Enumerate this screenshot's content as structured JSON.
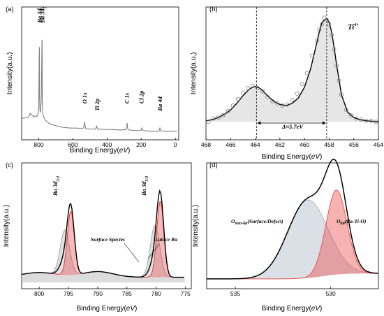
{
  "chart_data": [
    {
      "id": "a",
      "type": "line",
      "panel_label": "(a)",
      "xlabel": "Binding Energy",
      "xlabel_unit": "eV",
      "ylabel": "Intensity(a.u.)",
      "xlim": [
        900,
        -20
      ],
      "x_ticks": [
        800,
        600,
        400,
        200,
        0
      ],
      "color": "#808080",
      "series": [
        {
          "x": [
            900,
            880,
            860,
            850,
            840,
            830,
            820,
            810,
            805,
            800,
            797,
            796,
            795,
            793,
            790,
            785,
            781,
            780,
            779,
            777,
            775,
            770,
            760,
            740,
            720,
            700,
            680,
            660,
            640,
            620,
            600,
            580,
            560,
            540,
            535,
            531,
            528,
            525,
            520,
            500,
            480,
            470,
            465,
            460,
            458,
            455,
            450,
            430,
            400,
            380,
            350,
            320,
            300,
            290,
            286,
            283,
            282,
            280,
            278,
            275,
            270,
            250,
            230,
            210,
            200,
            198,
            196,
            194,
            190,
            180,
            160,
            140,
            110,
            95,
            92,
            90,
            88,
            85,
            75,
            60,
            40,
            20,
            0,
            -10
          ],
          "y": [
            105,
            106,
            108,
            125,
            118,
            110,
            115,
            112,
            120,
            150,
            380,
            400,
            200,
            140,
            128,
            175,
            420,
            430,
            200,
            130,
            120,
            108,
            96,
            84,
            78,
            74,
            70,
            67,
            66,
            64,
            64,
            64,
            63,
            63,
            73,
            90,
            72,
            62,
            61,
            60,
            60,
            60,
            64,
            74,
            65,
            60,
            59,
            59,
            58,
            58,
            57,
            56,
            58,
            56,
            62,
            74,
            85,
            70,
            60,
            58,
            56,
            55,
            54,
            54,
            55,
            60,
            66,
            58,
            54,
            53,
            52,
            51,
            51,
            52,
            60,
            66,
            58,
            53,
            52,
            51,
            51,
            51,
            51,
            51
          ]
        }
      ],
      "annotations": [
        {
          "text": "Ba 3d",
          "sub": "3",
          "x": 795,
          "y": 500
        },
        {
          "text": "Ba 3d",
          "sub": "5",
          "x": 780,
          "y": 500
        },
        {
          "text": "O 1s",
          "x": 531,
          "y": 165
        },
        {
          "text": "Ti 2p",
          "x": 458,
          "y": 135
        },
        {
          "text": "C 1s",
          "x": 284,
          "y": 165
        },
        {
          "text": "Cl 2p",
          "x": 198,
          "y": 165
        },
        {
          "text": "Ba 4d",
          "x": 91,
          "y": 135
        }
      ]
    },
    {
      "id": "b",
      "type": "line",
      "panel_label": "(b)",
      "xlabel": "Binding Energy",
      "xlabel_unit": "eV",
      "ylabel": "Intensity(a.u.)",
      "xlim": [
        468,
        454
      ],
      "x_ticks": [
        468,
        466,
        464,
        462,
        460,
        458,
        456,
        454
      ],
      "annotations": [
        {
          "text": "Ti",
          "sup": "4+"
        },
        {
          "text": "Δ≈5.7eV"
        }
      ],
      "vlines": [
        463.9,
        458.2
      ],
      "fit": {
        "x": [
          468,
          467.5,
          467,
          466.5,
          466,
          465.5,
          465,
          464.5,
          464.2,
          464,
          463.8,
          463.5,
          463,
          462.5,
          462,
          461.5,
          461,
          460.5,
          460,
          459.5,
          459,
          458.8,
          458.6,
          458.4,
          458.2,
          458,
          457.8,
          457.6,
          457.4,
          457,
          456.5,
          456,
          455.5,
          455,
          454.5,
          454
        ],
        "y": [
          0.06,
          0.07,
          0.09,
          0.12,
          0.16,
          0.22,
          0.29,
          0.35,
          0.37,
          0.375,
          0.37,
          0.35,
          0.29,
          0.24,
          0.21,
          0.2,
          0.22,
          0.27,
          0.37,
          0.54,
          0.78,
          0.88,
          0.96,
          0.99,
          1.0,
          0.97,
          0.88,
          0.74,
          0.58,
          0.3,
          0.14,
          0.09,
          0.07,
          0.06,
          0.055,
          0.05
        ]
      },
      "raw": {
        "x": [
          467.8,
          467.4,
          467,
          466.6,
          466.2,
          465.8,
          465.4,
          465,
          464.6,
          464.2,
          463.8,
          463.4,
          463,
          462.6,
          462.2,
          461.8,
          461.4,
          461,
          460.6,
          460.2,
          459.8,
          459.4,
          459,
          458.8,
          458.6,
          458.4,
          458.2,
          458,
          457.8,
          457.6,
          457.4,
          457.2,
          457,
          456.6,
          456.2,
          455.8,
          455.4,
          455,
          454.6,
          454.2
        ],
        "y": [
          0.05,
          0.08,
          0.09,
          0.11,
          0.15,
          0.2,
          0.26,
          0.32,
          0.36,
          0.38,
          0.36,
          0.33,
          0.28,
          0.24,
          0.22,
          0.2,
          0.21,
          0.25,
          0.31,
          0.4,
          0.5,
          0.66,
          0.8,
          0.9,
          0.95,
          1.01,
          0.99,
          0.95,
          0.85,
          0.72,
          0.57,
          0.43,
          0.3,
          0.16,
          0.11,
          0.08,
          0.07,
          0.06,
          0.06,
          0.05
        ]
      }
    },
    {
      "id": "c",
      "type": "area",
      "panel_label": "(c)",
      "xlabel": "Binding Energy",
      "xlabel_unit": "eV",
      "ylabel": "Intensity(a.u.)",
      "xlim": [
        803,
        774
      ],
      "x_ticks": [
        800,
        795,
        790,
        785,
        780,
        775
      ],
      "peak_labels": [
        {
          "text": "Ba 3d",
          "sub": "3/2"
        },
        {
          "text": "Ba 3d",
          "sub": "5/2"
        }
      ],
      "component_labels": [
        "Surface Species",
        "Lattice Ba"
      ],
      "components": [
        {
          "name": "Lattice Ba",
          "color": "#e83b3b",
          "peaks": [
            [
              794.6,
              0.6,
              0.68
            ],
            [
              779.3,
              0.6,
              0.81
            ]
          ]
        },
        {
          "name": "Surface Species",
          "color": "#a9a9a9",
          "peaks": [
            [
              795.6,
              0.8,
              0.48
            ],
            [
              780.2,
              0.8,
              0.55
            ]
          ]
        }
      ],
      "background_color": "#c0c0c0",
      "envelope_color": "#000000"
    },
    {
      "id": "d",
      "type": "area",
      "panel_label": "(d)",
      "xlabel": "Binding Energy",
      "xlabel_unit": "eV",
      "ylabel": "Intensity(a.u.)",
      "xlim": [
        536.5,
        527.5
      ],
      "x_ticks": [
        535,
        530
      ],
      "component_labels": [
        {
          "main": "O",
          "sub": "non-lat",
          "rest": "(Surface/Defect)"
        },
        {
          "main": "O",
          "sub": "lat",
          "rest": "(Ba-Ti-O)"
        }
      ],
      "components": [
        {
          "name": "O non-lat",
          "color": "#b0b8c8",
          "center": 531.2,
          "width": 1.05,
          "height": 0.72
        },
        {
          "name": "O lat",
          "color": "#ee5555",
          "center": 529.7,
          "width": 0.55,
          "height": 0.78
        }
      ],
      "envelope_color": "#000000"
    }
  ]
}
